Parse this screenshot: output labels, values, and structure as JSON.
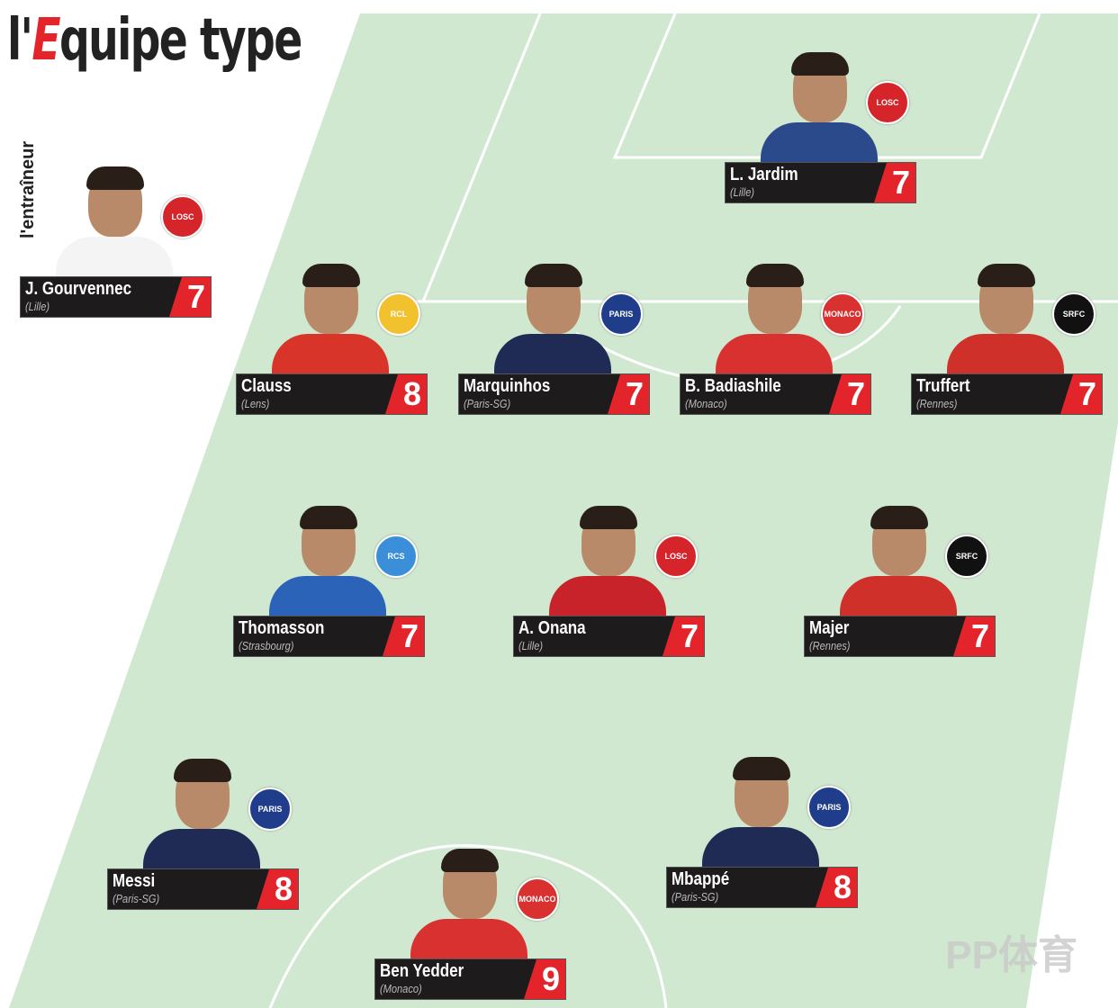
{
  "title": {
    "prefix": "l'",
    "accent": "E",
    "rest": "quipe type"
  },
  "coach_label": "l'entraîneur",
  "coach": {
    "name": "J. Gourvennec",
    "club": "(Lille)",
    "score": "7",
    "badge": "LOSC",
    "kit": "#f4f4f4",
    "badge_color": "#d6242b"
  },
  "players": [
    {
      "name": "L. Jardim",
      "club": "(Lille)",
      "score": "7",
      "badge": "LOSC",
      "kit": "#2b4a8c",
      "badge_color": "#d6242b"
    },
    {
      "name": "Clauss",
      "club": "(Lens)",
      "score": "8",
      "badge": "RCL",
      "kit": "#d8342a",
      "badge_color": "#f2c12e"
    },
    {
      "name": "Marquinhos",
      "club": "(Paris-SG)",
      "score": "7",
      "badge": "PARIS",
      "kit": "#1f2a55",
      "badge_color": "#1f3d8a"
    },
    {
      "name": "B. Badiashile",
      "club": "(Monaco)",
      "score": "7",
      "badge": "MONACO",
      "kit": "#d93030",
      "badge_color": "#d93030"
    },
    {
      "name": "Truffert",
      "club": "(Rennes)",
      "score": "7",
      "badge": "SRFC",
      "kit": "#d0302a",
      "badge_color": "#111"
    },
    {
      "name": "Thomasson",
      "club": "(Strasbourg)",
      "score": "7",
      "badge": "RCS",
      "kit": "#2a63b8",
      "badge_color": "#3a8fd8"
    },
    {
      "name": "A. Onana",
      "club": "(Lille)",
      "score": "7",
      "badge": "LOSC",
      "kit": "#c8232a",
      "badge_color": "#d6242b"
    },
    {
      "name": "Majer",
      "club": "(Rennes)",
      "score": "7",
      "badge": "SRFC",
      "kit": "#d0302a",
      "badge_color": "#111"
    },
    {
      "name": "Messi",
      "club": "(Paris-SG)",
      "score": "8",
      "badge": "PARIS",
      "kit": "#1f2a55",
      "badge_color": "#1f3d8a"
    },
    {
      "name": "Mbappé",
      "club": "(Paris-SG)",
      "score": "8",
      "badge": "PARIS",
      "kit": "#1f2a55",
      "badge_color": "#1f3d8a"
    },
    {
      "name": "Ben Yedder",
      "club": "(Monaco)",
      "score": "9",
      "badge": "MONACO",
      "kit": "#d93030",
      "badge_color": "#d93030"
    }
  ],
  "watermark": "PP体育"
}
